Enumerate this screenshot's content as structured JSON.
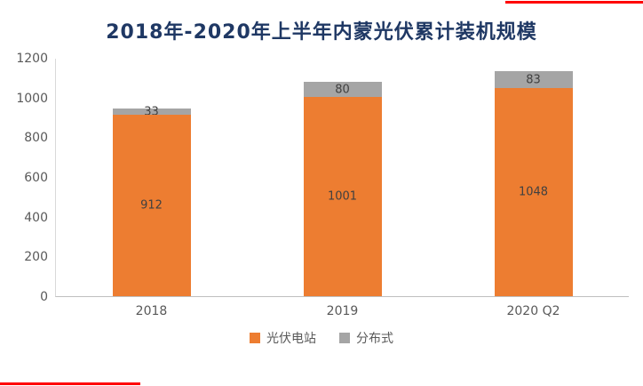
{
  "title": "2018年-2020年上半年内蒙光伏累计装机规模",
  "colors": {
    "title": "#1F3864",
    "accent_line": "#FF0000",
    "axis_text": "#595959",
    "value_label_text": "#404040"
  },
  "chart_data": {
    "type": "bar",
    "stacked": true,
    "title": "2018年-2020年上半年内蒙光伏累计装机规模",
    "categories": [
      "2018",
      "2019",
      "2020 Q2"
    ],
    "series": [
      {
        "name": "光伏电站",
        "color": "#ED7D31",
        "values": [
          912,
          1001,
          1048
        ]
      },
      {
        "name": "分布式",
        "color": "#A5A5A5",
        "values": [
          33,
          80,
          83
        ]
      }
    ],
    "xlabel": "",
    "ylabel": "",
    "ylim": [
      0,
      1200
    ],
    "yticks": [
      0,
      200,
      400,
      600,
      800,
      1000,
      1200
    ],
    "grid": false,
    "legend_position": "bottom"
  }
}
